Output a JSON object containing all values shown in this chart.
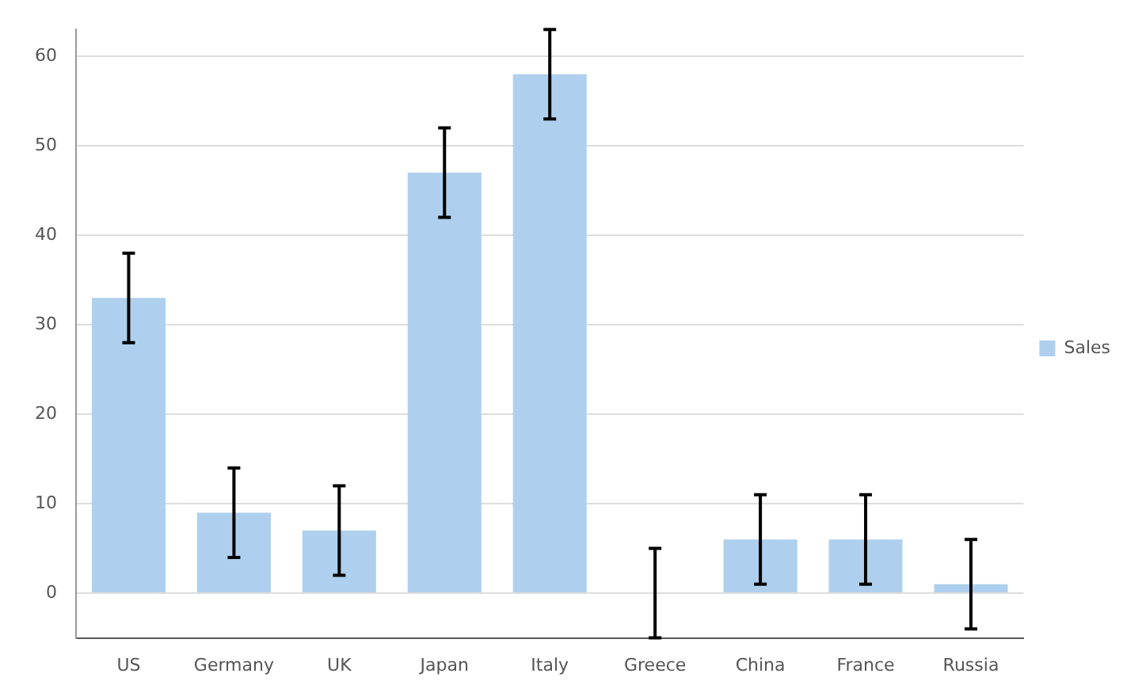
{
  "chart_data": {
    "type": "bar",
    "categories": [
      "US",
      "Germany",
      "UK",
      "Japan",
      "Italy",
      "Greece",
      "China",
      "France",
      "Russia"
    ],
    "series": [
      {
        "name": "Sales",
        "color": "#aed0ee",
        "values": [
          33,
          9,
          7,
          47,
          58,
          0,
          6,
          6,
          1
        ],
        "errors": [
          5,
          5,
          5,
          5,
          5,
          5,
          5,
          5,
          5
        ]
      }
    ],
    "ylim": [
      -5,
      63
    ],
    "yticks": [
      0,
      10,
      20,
      30,
      40,
      50,
      60
    ],
    "grid": "y",
    "legend": "right"
  }
}
